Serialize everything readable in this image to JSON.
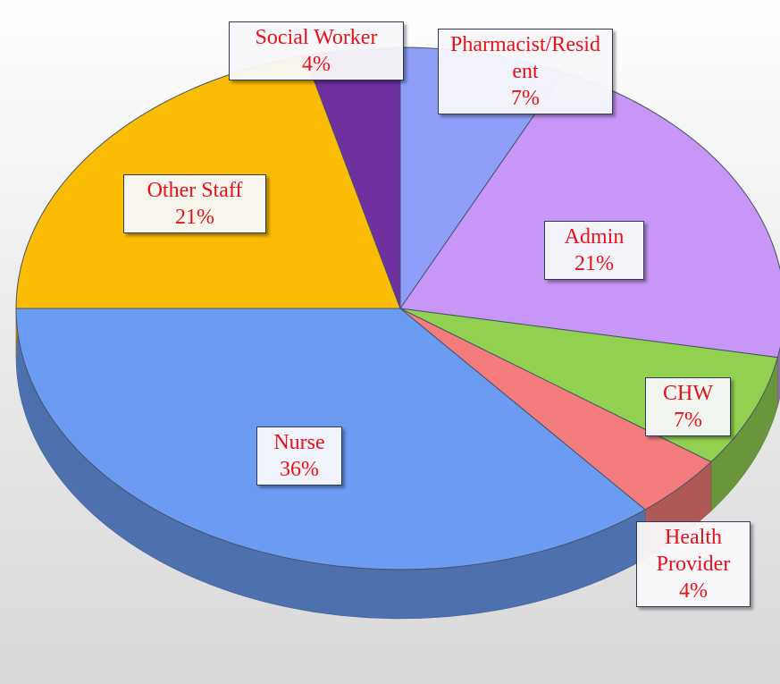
{
  "chart_data": {
    "type": "pie",
    "categories": [
      "Pharmacist/Resident",
      "Admin",
      "CHW",
      "Health Provider",
      "Nurse",
      "Other Staff",
      "Social Worker"
    ],
    "values": [
      7,
      21,
      7,
      4,
      36,
      21,
      4
    ],
    "value_labels": [
      "7%",
      "21%",
      "7%",
      "4%",
      "36%",
      "21%",
      "4%"
    ],
    "colors": [
      "#8f9ef7",
      "#c796f7",
      "#92d050",
      "#f47c7c",
      "#6b9cf2",
      "#fbbc04",
      "#7030a0"
    ]
  }
}
